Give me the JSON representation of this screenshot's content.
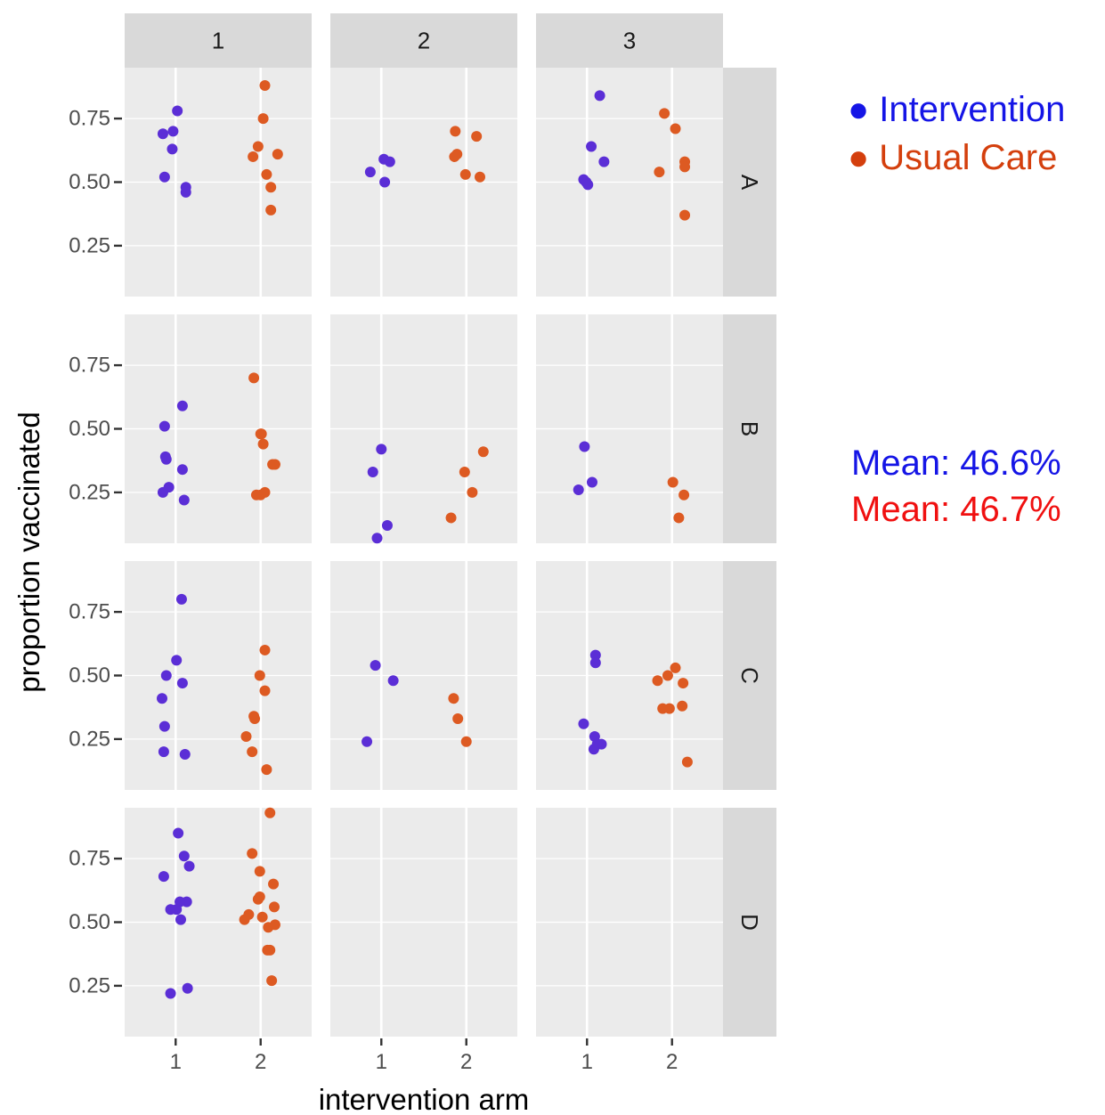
{
  "chart_data": {
    "type": "scatter",
    "xlabel": "intervention arm",
    "ylabel": "proportion vaccinated",
    "column_facets": [
      "1",
      "2",
      "3"
    ],
    "row_facets": [
      "A",
      "B",
      "C",
      "D"
    ],
    "x_ticks": [
      "1",
      "2"
    ],
    "y_ticks": [
      0.25,
      0.5,
      0.75
    ],
    "y_tick_labels": [
      "0.25",
      "0.50",
      "0.75"
    ],
    "xlim": [
      0.4,
      2.6
    ],
    "ylim": [
      0.05,
      0.95
    ],
    "grid": true,
    "series": [
      {
        "key": "intervention",
        "arm": 1,
        "color": "#5b2ed6"
      },
      {
        "key": "usual_care",
        "arm": 2,
        "color": "#dd5a22"
      }
    ],
    "panels": [
      {
        "row": "A",
        "col": "1",
        "points": [
          [
            0.85,
            0.69,
            1
          ],
          [
            0.97,
            0.7,
            1
          ],
          [
            1.02,
            0.78,
            1
          ],
          [
            0.96,
            0.63,
            1
          ],
          [
            0.87,
            0.52,
            1
          ],
          [
            1.12,
            0.48,
            1
          ],
          [
            1.12,
            0.46,
            1
          ],
          [
            2.05,
            0.88,
            2
          ],
          [
            2.03,
            0.75,
            2
          ],
          [
            1.97,
            0.64,
            2
          ],
          [
            1.91,
            0.6,
            2
          ],
          [
            2.2,
            0.61,
            2
          ],
          [
            2.07,
            0.53,
            2
          ],
          [
            2.12,
            0.48,
            2
          ],
          [
            2.12,
            0.39,
            2
          ]
        ]
      },
      {
        "row": "A",
        "col": "2",
        "points": [
          [
            0.87,
            0.54,
            1
          ],
          [
            1.03,
            0.59,
            1
          ],
          [
            1.1,
            0.58,
            1
          ],
          [
            1.04,
            0.5,
            1
          ],
          [
            1.87,
            0.7,
            2
          ],
          [
            2.12,
            0.68,
            2
          ],
          [
            1.89,
            0.61,
            2
          ],
          [
            1.86,
            0.6,
            2
          ],
          [
            1.99,
            0.53,
            2
          ],
          [
            2.16,
            0.52,
            2
          ]
        ]
      },
      {
        "row": "A",
        "col": "3",
        "points": [
          [
            1.15,
            0.84,
            1
          ],
          [
            1.05,
            0.64,
            1
          ],
          [
            1.2,
            0.58,
            1
          ],
          [
            0.96,
            0.51,
            1
          ],
          [
            1.01,
            0.49,
            1
          ],
          [
            0.99,
            0.5,
            1
          ],
          [
            1.91,
            0.77,
            2
          ],
          [
            2.04,
            0.71,
            2
          ],
          [
            1.85,
            0.54,
            2
          ],
          [
            2.15,
            0.58,
            2
          ],
          [
            2.15,
            0.56,
            2
          ],
          [
            2.15,
            0.37,
            2
          ]
        ]
      },
      {
        "row": "B",
        "col": "1",
        "points": [
          [
            1.08,
            0.59,
            1
          ],
          [
            0.87,
            0.51,
            1
          ],
          [
            0.88,
            0.39,
            1
          ],
          [
            0.89,
            0.38,
            1
          ],
          [
            1.08,
            0.34,
            1
          ],
          [
            0.92,
            0.27,
            1
          ],
          [
            0.85,
            0.25,
            1
          ],
          [
            1.1,
            0.22,
            1
          ],
          [
            1.92,
            0.7,
            2
          ],
          [
            2.01,
            0.48,
            2
          ],
          [
            2.0,
            0.48,
            2
          ],
          [
            2.03,
            0.44,
            2
          ],
          [
            2.14,
            0.36,
            2
          ],
          [
            2.17,
            0.36,
            2
          ],
          [
            2.05,
            0.25,
            2
          ],
          [
            2.0,
            0.24,
            2
          ],
          [
            1.95,
            0.24,
            2
          ]
        ]
      },
      {
        "row": "B",
        "col": "2",
        "points": [
          [
            1.0,
            0.42,
            1
          ],
          [
            0.9,
            0.33,
            1
          ],
          [
            1.07,
            0.12,
            1
          ],
          [
            0.95,
            0.07,
            1
          ],
          [
            2.2,
            0.41,
            2
          ],
          [
            1.98,
            0.33,
            2
          ],
          [
            2.07,
            0.25,
            2
          ],
          [
            1.82,
            0.15,
            2
          ]
        ]
      },
      {
        "row": "B",
        "col": "3",
        "points": [
          [
            0.97,
            0.43,
            1
          ],
          [
            1.06,
            0.29,
            1
          ],
          [
            0.9,
            0.26,
            1
          ],
          [
            2.01,
            0.29,
            2
          ],
          [
            2.14,
            0.24,
            2
          ],
          [
            2.08,
            0.15,
            2
          ]
        ]
      },
      {
        "row": "C",
        "col": "1",
        "points": [
          [
            1.07,
            0.8,
            1
          ],
          [
            1.01,
            0.56,
            1
          ],
          [
            0.89,
            0.5,
            1
          ],
          [
            1.08,
            0.47,
            1
          ],
          [
            0.84,
            0.41,
            1
          ],
          [
            0.87,
            0.3,
            1
          ],
          [
            0.86,
            0.2,
            1
          ],
          [
            1.11,
            0.19,
            1
          ],
          [
            2.05,
            0.6,
            2
          ],
          [
            1.99,
            0.5,
            2
          ],
          [
            2.05,
            0.44,
            2
          ],
          [
            1.92,
            0.34,
            2
          ],
          [
            1.93,
            0.33,
            2
          ],
          [
            1.83,
            0.26,
            2
          ],
          [
            1.9,
            0.2,
            2
          ],
          [
            2.07,
            0.13,
            2
          ]
        ]
      },
      {
        "row": "C",
        "col": "2",
        "points": [
          [
            0.93,
            0.54,
            1
          ],
          [
            1.14,
            0.48,
            1
          ],
          [
            0.83,
            0.24,
            1
          ],
          [
            1.85,
            0.41,
            2
          ],
          [
            1.9,
            0.33,
            2
          ],
          [
            2.0,
            0.24,
            2
          ]
        ]
      },
      {
        "row": "C",
        "col": "3",
        "points": [
          [
            1.1,
            0.58,
            1
          ],
          [
            1.1,
            0.55,
            1
          ],
          [
            0.96,
            0.31,
            1
          ],
          [
            1.09,
            0.26,
            1
          ],
          [
            1.17,
            0.23,
            1
          ],
          [
            1.12,
            0.23,
            1
          ],
          [
            1.08,
            0.21,
            1
          ],
          [
            1.83,
            0.48,
            2
          ],
          [
            1.95,
            0.5,
            2
          ],
          [
            2.04,
            0.53,
            2
          ],
          [
            2.13,
            0.47,
            2
          ],
          [
            1.89,
            0.37,
            2
          ],
          [
            1.97,
            0.37,
            2
          ],
          [
            2.12,
            0.38,
            2
          ],
          [
            2.18,
            0.16,
            2
          ]
        ]
      },
      {
        "row": "D",
        "col": "1",
        "points": [
          [
            1.03,
            0.85,
            1
          ],
          [
            1.1,
            0.76,
            1
          ],
          [
            1.16,
            0.72,
            1
          ],
          [
            0.86,
            0.68,
            1
          ],
          [
            1.13,
            0.58,
            1
          ],
          [
            1.05,
            0.58,
            1
          ],
          [
            0.94,
            0.55,
            1
          ],
          [
            1.01,
            0.55,
            1
          ],
          [
            1.06,
            0.51,
            1
          ],
          [
            0.94,
            0.22,
            1
          ],
          [
            1.14,
            0.24,
            1
          ],
          [
            2.11,
            0.93,
            2
          ],
          [
            1.9,
            0.77,
            2
          ],
          [
            1.99,
            0.7,
            2
          ],
          [
            2.15,
            0.65,
            2
          ],
          [
            1.99,
            0.6,
            2
          ],
          [
            1.97,
            0.59,
            2
          ],
          [
            2.16,
            0.56,
            2
          ],
          [
            1.86,
            0.53,
            2
          ],
          [
            1.81,
            0.51,
            2
          ],
          [
            2.02,
            0.52,
            2
          ],
          [
            2.09,
            0.48,
            2
          ],
          [
            2.17,
            0.49,
            2
          ],
          [
            2.08,
            0.39,
            2
          ],
          [
            2.11,
            0.39,
            2
          ],
          [
            2.13,
            0.27,
            2
          ]
        ]
      },
      {
        "row": "D",
        "col": "2",
        "points": []
      },
      {
        "row": "D",
        "col": "3",
        "points": []
      }
    ]
  },
  "legend": {
    "items": [
      {
        "symbol": "●",
        "label": "Intervention",
        "color": "#1515e6"
      },
      {
        "symbol": "●",
        "label": "Usual Care",
        "color": "#d43f0d"
      }
    ]
  },
  "means": {
    "items": [
      {
        "text": "Mean: 46.6%",
        "color": "#1515e6"
      },
      {
        "text": "Mean: 46.7%",
        "color": "#f01010"
      }
    ]
  }
}
